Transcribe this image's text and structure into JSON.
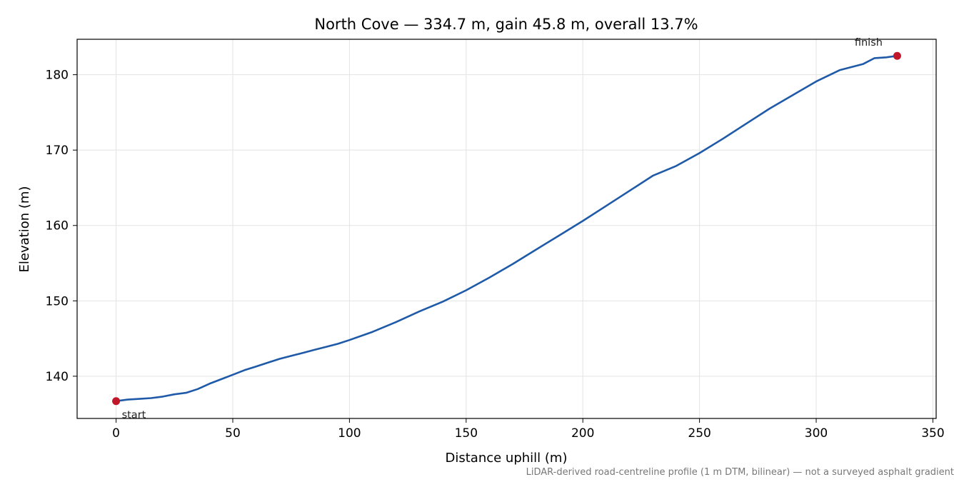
{
  "chart_data": {
    "type": "line",
    "title": "North Cove — 334.7 m, gain 45.8 m, overall 13.7%",
    "xlabel": "Distance uphill (m)",
    "ylabel": "Elevation (m)",
    "xlim": [
      -16.7,
      351.4
    ],
    "ylim": [
      134.4,
      184.7
    ],
    "xticks": [
      0,
      50,
      100,
      150,
      200,
      250,
      300,
      350
    ],
    "yticks": [
      140,
      150,
      160,
      170,
      180
    ],
    "grid": true,
    "series": [
      {
        "color": "#1f5aa8",
        "x": [
          0,
          5,
          10,
          15,
          20,
          25,
          30,
          35,
          40,
          45,
          50,
          55,
          60,
          65,
          70,
          75,
          80,
          85,
          90,
          95,
          100,
          110,
          120,
          130,
          140,
          150,
          160,
          170,
          180,
          190,
          200,
          210,
          220,
          230,
          240,
          250,
          260,
          270,
          280,
          290,
          300,
          310,
          320,
          325,
          330,
          334.7
        ],
        "y": [
          136.7,
          136.9,
          137.0,
          137.1,
          137.3,
          137.6,
          137.8,
          138.3,
          139.0,
          139.6,
          140.2,
          140.8,
          141.3,
          141.8,
          142.3,
          142.7,
          143.1,
          143.5,
          143.9,
          144.3,
          144.8,
          145.9,
          147.2,
          148.6,
          149.9,
          151.4,
          153.1,
          154.9,
          156.8,
          158.7,
          160.6,
          162.6,
          164.6,
          166.6,
          167.9,
          169.6,
          171.5,
          173.5,
          175.5,
          177.3,
          179.1,
          180.6,
          181.4,
          182.2,
          182.3,
          182.5
        ]
      }
    ],
    "markers": [
      {
        "x": 0,
        "y": 136.7,
        "label": "start",
        "color": "#c0182a"
      },
      {
        "x": 334.7,
        "y": 182.5,
        "label": "finish",
        "color": "#c0182a"
      }
    ],
    "footnote": "LiDAR-derived road-centreline profile (1 m DTM, bilinear) — not a surveyed asphalt gradient"
  }
}
